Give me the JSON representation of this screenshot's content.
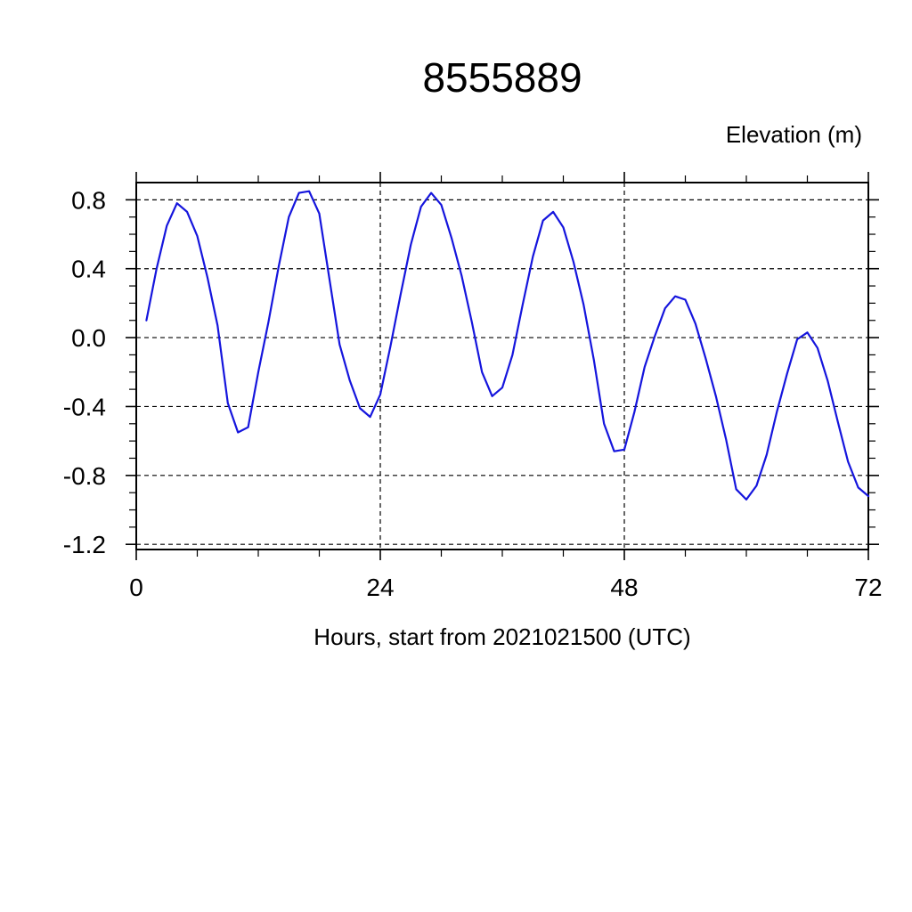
{
  "chart_data": {
    "type": "line",
    "title": "8555889",
    "xlabel": "Hours, start from 2021021500 (UTC)",
    "ylabel": "Elevation (m)",
    "xlim": [
      0,
      72
    ],
    "ylim": [
      -1.23,
      0.9
    ],
    "x_major_ticks": [
      0,
      24,
      48,
      72
    ],
    "x_minor_step": 6,
    "y_major_ticks": [
      0.8,
      0.4,
      0.0,
      -0.4,
      -0.8,
      -1.2
    ],
    "y_minor_step": 0.1,
    "grid": {
      "style": "dashed",
      "at_major_ticks": true
    },
    "legend": "none",
    "line_color": "#1515dd",
    "frame_color": "#000000",
    "series": [
      {
        "name": "elevation",
        "x": [
          1,
          2,
          3,
          4,
          5,
          6,
          7,
          8,
          9,
          10,
          11,
          12,
          13,
          14,
          15,
          16,
          17,
          18,
          19,
          20,
          21,
          22,
          23,
          24,
          25,
          26,
          27,
          28,
          29,
          30,
          31,
          32,
          33,
          34,
          35,
          36,
          37,
          38,
          39,
          40,
          41,
          42,
          43,
          44,
          45,
          46,
          47,
          48,
          49,
          50,
          51,
          52,
          53,
          54,
          55,
          56,
          57,
          58,
          59,
          60,
          61,
          62,
          63,
          64,
          65,
          66,
          67,
          68,
          69,
          70,
          71,
          72
        ],
        "y": [
          0.1,
          0.4,
          0.65,
          0.78,
          0.73,
          0.59,
          0.35,
          0.07,
          -0.38,
          -0.55,
          -0.52,
          -0.2,
          0.09,
          0.41,
          0.7,
          0.84,
          0.85,
          0.72,
          0.34,
          -0.04,
          -0.25,
          -0.41,
          -0.46,
          -0.33,
          -0.05,
          0.25,
          0.54,
          0.76,
          0.84,
          0.77,
          0.58,
          0.36,
          0.09,
          -0.2,
          -0.34,
          -0.29,
          -0.1,
          0.19,
          0.47,
          0.68,
          0.73,
          0.64,
          0.44,
          0.19,
          -0.13,
          -0.5,
          -0.66,
          -0.65,
          -0.43,
          -0.17,
          0.01,
          0.17,
          0.24,
          0.22,
          0.08,
          -0.12,
          -0.34,
          -0.59,
          -0.88,
          -0.94,
          -0.86,
          -0.68,
          -0.43,
          -0.21,
          -0.01,
          0.03,
          -0.06,
          -0.25,
          -0.49,
          -0.72,
          -0.87,
          -0.92
        ]
      }
    ]
  }
}
